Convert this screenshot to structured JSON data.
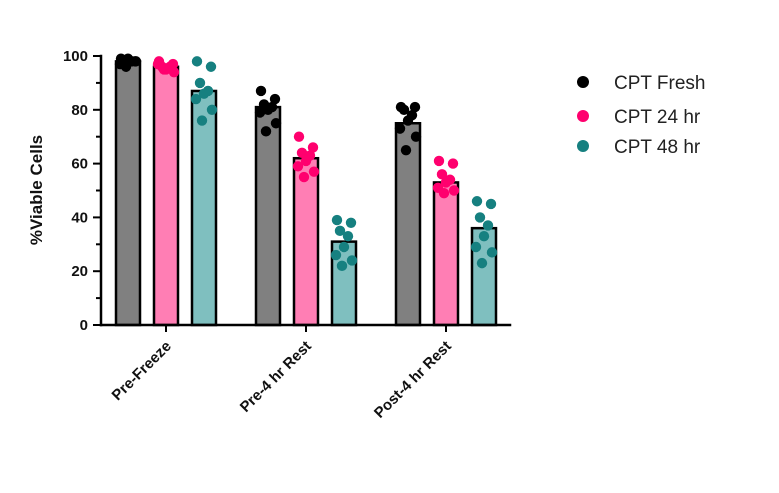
{
  "chart_data": {
    "type": "bar",
    "title": "",
    "xlabel": "",
    "ylabel": "%Viable Cells",
    "ylim": [
      0,
      100
    ],
    "yticks": [
      0,
      20,
      40,
      60,
      80,
      100
    ],
    "grid": false,
    "legend_position": "top-right",
    "categories": [
      "Pre-Freeze",
      "Pre-4 hr Rest",
      "Post-4 hr Rest"
    ],
    "series": [
      {
        "name": "CPT Fresh",
        "bar_color": "#808080",
        "point_color": "#000000",
        "values": [
          98,
          81,
          75
        ],
        "points": [
          [
            99,
            98,
            97,
            98,
            99,
            97,
            98,
            96
          ],
          [
            87,
            84,
            82,
            81,
            80,
            79,
            75,
            72
          ],
          [
            81,
            81,
            80,
            78,
            76,
            73,
            70,
            65
          ]
        ]
      },
      {
        "name": "CPT 24 hr",
        "bar_color": "#ff7eb4",
        "point_color": "#ff006e",
        "values": [
          96,
          62,
          53
        ],
        "points": [
          [
            98,
            97,
            96,
            96,
            95,
            97,
            94,
            95
          ],
          [
            70,
            66,
            64,
            63,
            61,
            59,
            57,
            55
          ],
          [
            61,
            60,
            56,
            54,
            53,
            51,
            50,
            49
          ]
        ]
      },
      {
        "name": "CPT 48 hr",
        "bar_color": "#7fbfbf",
        "point_color": "#168080",
        "values": [
          87,
          31,
          36
        ],
        "points": [
          [
            98,
            96,
            90,
            87,
            86,
            84,
            80,
            76
          ],
          [
            39,
            38,
            35,
            33,
            29,
            26,
            24,
            22
          ],
          [
            46,
            45,
            40,
            37,
            33,
            29,
            27,
            23
          ]
        ]
      }
    ]
  }
}
